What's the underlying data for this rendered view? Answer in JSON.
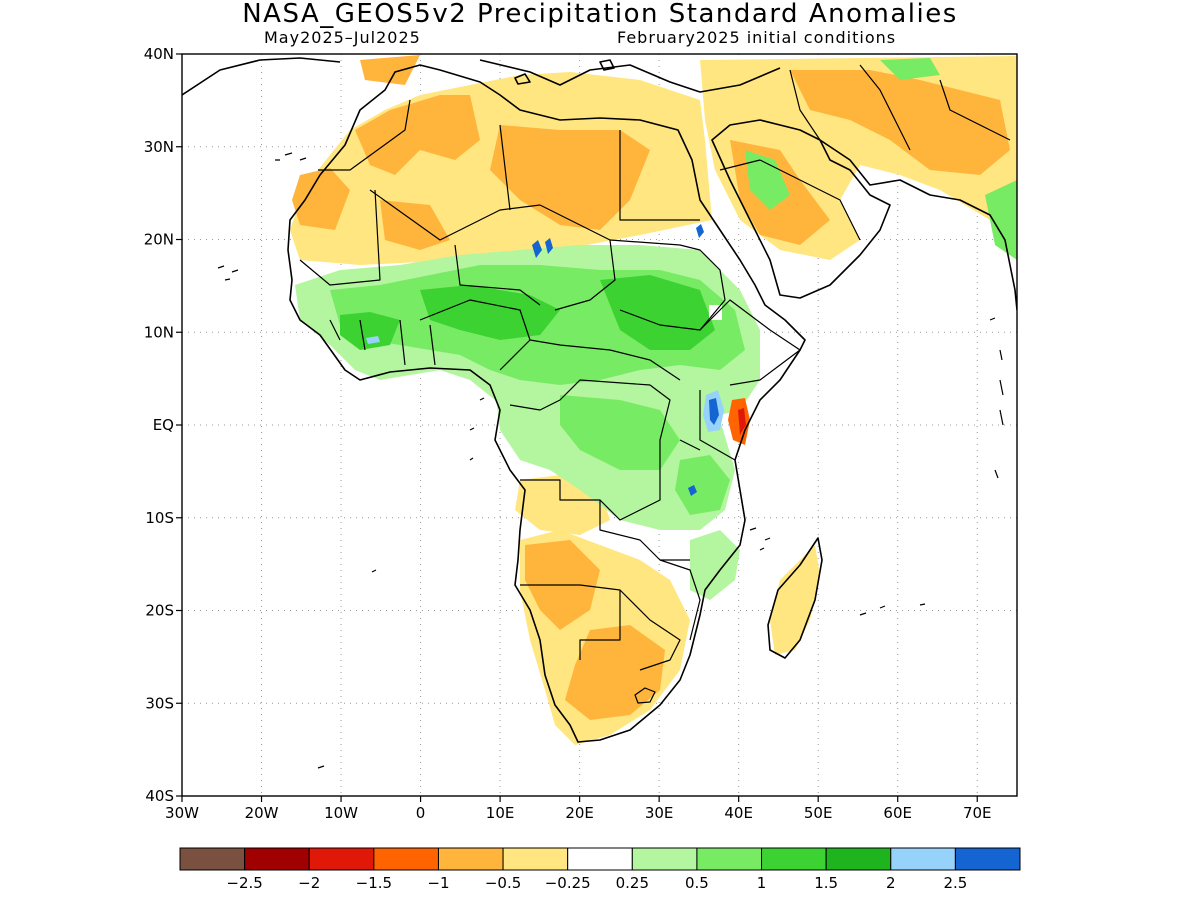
{
  "title": "NASA_GEOS5v2 Precipitation Standard Anomalies",
  "subtitle_left": "May2025–Jul2025",
  "subtitle_right": "February2025 initial conditions",
  "map": {
    "lon_range": [
      -30,
      75
    ],
    "lat_range": [
      -40,
      40
    ],
    "y_ticks": [
      {
        "label": "40N",
        "lat": 40
      },
      {
        "label": "30N",
        "lat": 30
      },
      {
        "label": "20N",
        "lat": 20
      },
      {
        "label": "10N",
        "lat": 10
      },
      {
        "label": "EQ",
        "lat": 0
      },
      {
        "label": "10S",
        "lat": -10
      },
      {
        "label": "20S",
        "lat": -20
      },
      {
        "label": "30S",
        "lat": -30
      },
      {
        "label": "40S",
        "lat": -40
      }
    ],
    "x_ticks": [
      {
        "label": "30W",
        "lon": -30
      },
      {
        "label": "20W",
        "lon": -20
      },
      {
        "label": "10W",
        "lon": -10
      },
      {
        "label": "0",
        "lon": 0
      },
      {
        "label": "10E",
        "lon": 10
      },
      {
        "label": "20E",
        "lon": 20
      },
      {
        "label": "30E",
        "lon": 30
      },
      {
        "label": "40E",
        "lon": 40
      },
      {
        "label": "50E",
        "lon": 50
      },
      {
        "label": "60E",
        "lon": 60
      },
      {
        "label": "70E",
        "lon": 70
      }
    ],
    "grid": true
  },
  "colorbar": {
    "colors": [
      "#7a5040",
      "#a00000",
      "#e01808",
      "#ff6400",
      "#ffb43c",
      "#ffe680",
      "#ffffff",
      "#b4f5a0",
      "#78eb64",
      "#3cd232",
      "#1eb41e",
      "#96d2fa",
      "#1464d2"
    ],
    "labels": [
      "−2.5",
      "−2",
      "−1.5",
      "−1",
      "−0.5",
      "−0.25",
      "0.25",
      "0.5",
      "1",
      "1.5",
      "2",
      "2.5"
    ]
  }
}
